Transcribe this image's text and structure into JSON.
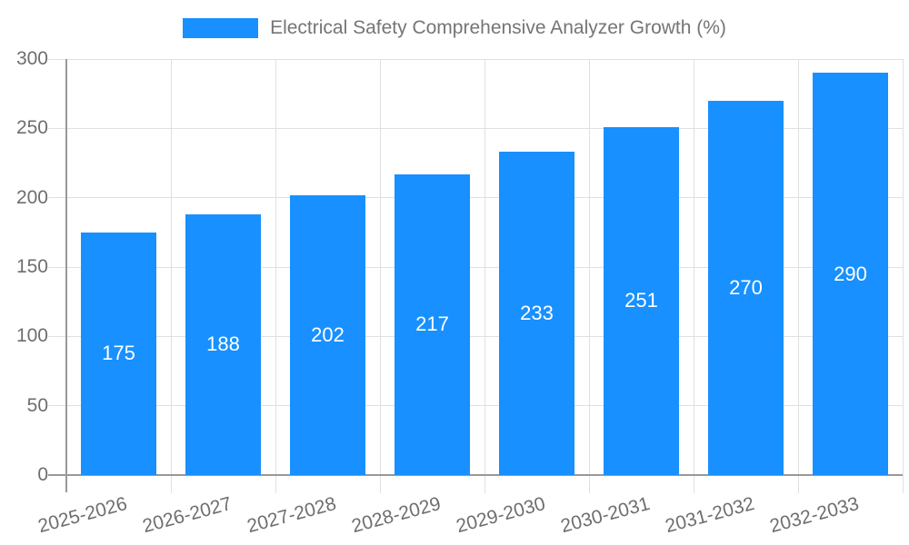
{
  "legend": {
    "items": [
      {
        "label": "Electrical Safety Comprehensive Analyzer Growth (%)",
        "swatch_color": "#1890ff"
      }
    ]
  },
  "chart_data": {
    "type": "bar",
    "title": "Electrical Safety Comprehensive Analyzer Growth (%)",
    "categories": [
      "2025-2026",
      "2026-2027",
      "2027-2028",
      "2028-2029",
      "2029-2030",
      "2030-2031",
      "2031-2032",
      "2032-2033"
    ],
    "values": [
      175,
      188,
      202,
      217,
      233,
      251,
      270,
      290
    ],
    "xlabel": "",
    "ylabel": "",
    "ylim": [
      0,
      300
    ],
    "yticks": [
      0,
      50,
      100,
      150,
      200,
      250,
      300
    ],
    "grid": true,
    "legend_position": "top-center",
    "xtick_rotation_deg": -15,
    "value_labels": "inside-center"
  },
  "colors": {
    "bar": "#1890ff",
    "grid-line": "#e0e0e0",
    "axis-line": "#999999",
    "tick-label": "#6e6e6e",
    "legend-text": "#757575",
    "value-label": "#ffffff",
    "background": "#ffffff"
  }
}
